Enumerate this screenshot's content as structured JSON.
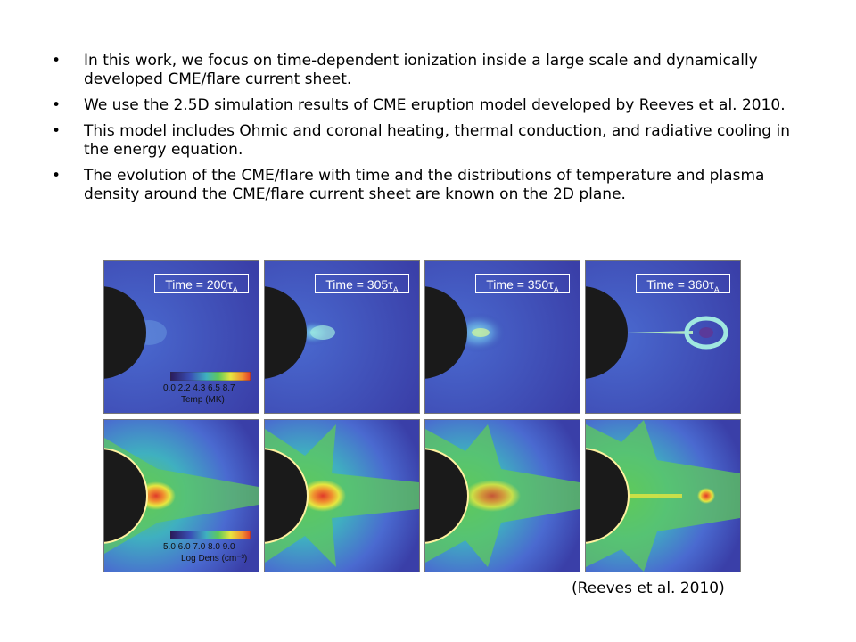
{
  "bullets": [
    "In this work, we focus on time-dependent ionization inside a large scale and dynamically developed CME/flare current sheet.",
    "We use the 2.5D simulation results of CME eruption model developed by Reeves et al. 2010.",
    "This model includes Ohmic and coronal heating, thermal conduction, and radiative cooling in the energy equation.",
    "The evolution of the CME/flare with time and the distributions of temperature and plasma density around the CME/flare current sheet are known on the 2D plane."
  ],
  "bullet_symbol": "•",
  "figure": {
    "time_labels": [
      "Time = 200τ",
      "Time = 305τ",
      "Time = 350τ",
      "Time = 360τ"
    ],
    "time_subscript": "A",
    "temp_colorbar": {
      "ticks": "0.0 2.2 4.3 6.5 8.7",
      "label": "Temp (MK)"
    },
    "dens_colorbar": {
      "ticks": "5.0 6.0 7.0 8.0 9.0",
      "label": "Log Dens (cm⁻³)"
    },
    "colors": {
      "background_blue": "#3a4fb5",
      "sun": "#1a1a1a",
      "green": "#5fc95a",
      "yellow": "#e6e640",
      "red": "#e03a2a"
    }
  },
  "citation": "(Reeves et al. 2010)"
}
